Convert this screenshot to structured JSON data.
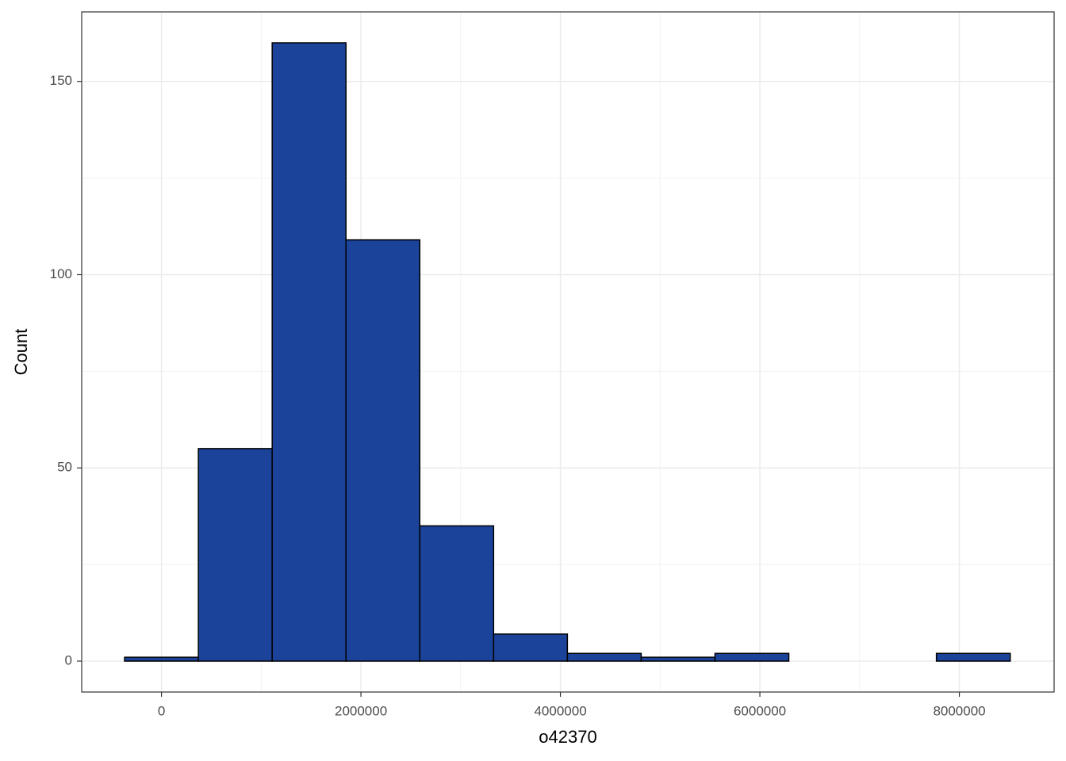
{
  "chart_data": {
    "type": "histogram",
    "x_label": "o42370",
    "y_label": "Count",
    "bins": [
      -370000,
      370000,
      1110000,
      1850000,
      2590000,
      3330000,
      4070000,
      4810000,
      5550000,
      6290000,
      7030000,
      7770000,
      8510000
    ],
    "values": [
      1,
      55,
      160,
      109,
      35,
      7,
      2,
      1,
      2,
      0,
      0,
      2
    ],
    "color": "#1a4399",
    "edge_color": "#000000",
    "xlim": [
      -800000,
      8950000
    ],
    "ylim": [
      -8,
      168
    ],
    "xticks": [
      0,
      2000000,
      4000000,
      6000000,
      8000000
    ],
    "yticks": [
      0,
      50,
      100,
      150
    ],
    "x_minor_ticks": [
      1000000,
      3000000,
      5000000,
      7000000
    ],
    "y_minor_ticks": [
      25,
      75,
      125
    ],
    "grid": true
  }
}
